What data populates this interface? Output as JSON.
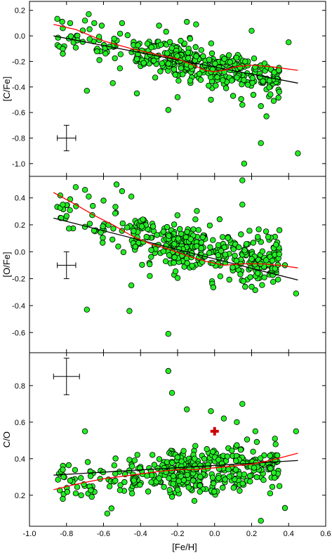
{
  "chart_data": {
    "type": "scatter",
    "xlabel": "[Fe/H]",
    "xlim": [
      -1.0,
      0.6
    ],
    "xticks": [
      -1.0,
      -0.8,
      -0.6,
      -0.4,
      -0.2,
      0.0,
      0.2,
      0.4,
      0.6
    ],
    "xtick_labels": [
      "-1.0",
      "-0.8",
      "-0.6",
      "-0.4",
      "-0.2",
      "0.0",
      "0.2",
      "0.4",
      "0.6"
    ],
    "colors": {
      "points": "#22ee22",
      "point_edge": "#000000",
      "linear_fit": "#000000",
      "smooth_fit": "#ff0000",
      "sun_marker": "#cc0000"
    },
    "panels": [
      {
        "id": "c-fe",
        "ylabel": "[C/Fe]",
        "ylim": [
          -1.1,
          0.27
        ],
        "yticks": [
          0.2,
          0.0,
          -0.2,
          -0.4,
          -0.6,
          -0.8,
          -1.0
        ],
        "ytick_labels": [
          "0.2",
          "0.0",
          "-0.2",
          "-0.4",
          "-0.6",
          "-0.8",
          "-1.0"
        ],
        "error_bar": {
          "x": -0.8,
          "y": -0.8,
          "xerr": 0.05,
          "yerr": 0.1
        },
        "linear_fit": [
          [
            -0.87,
            0.0
          ],
          [
            0.45,
            -0.37
          ]
        ],
        "smooth_fit": [
          [
            -0.87,
            0.09
          ],
          [
            -0.75,
            0.05
          ],
          [
            -0.6,
            -0.04
          ],
          [
            -0.45,
            -0.1
          ],
          [
            -0.3,
            -0.15
          ],
          [
            -0.2,
            -0.18
          ],
          [
            -0.1,
            -0.24
          ],
          [
            -0.05,
            -0.27
          ],
          [
            0.0,
            -0.28
          ],
          [
            0.05,
            -0.27
          ],
          [
            0.12,
            -0.24
          ],
          [
            0.2,
            -0.23
          ],
          [
            0.3,
            -0.24
          ],
          [
            0.45,
            -0.27
          ]
        ],
        "seed": 11,
        "center": [
          [
            -0.87,
            0.0
          ],
          [
            0.45,
            -0.37
          ]
        ],
        "spread": 0.07,
        "points": [
          [
            -0.82,
            0.06
          ],
          [
            -0.82,
            -0.14
          ],
          [
            -0.78,
            0.1
          ],
          [
            -0.7,
            0.12
          ],
          [
            -0.68,
            0.17
          ],
          [
            -0.65,
            0.1
          ],
          [
            -0.61,
            0.08
          ],
          [
            -0.69,
            -0.43
          ],
          [
            -0.55,
            -0.37
          ],
          [
            -0.42,
            -0.45
          ],
          [
            -0.2,
            -0.48
          ],
          [
            -0.02,
            -0.5
          ],
          [
            0.1,
            -0.47
          ],
          [
            0.15,
            -0.54
          ],
          [
            0.25,
            -0.55
          ],
          [
            0.28,
            -0.63
          ],
          [
            -0.25,
            -0.58
          ],
          [
            0.25,
            -0.84
          ],
          [
            0.16,
            -1.0
          ],
          [
            0.45,
            -0.92
          ],
          [
            -0.15,
            0.11
          ],
          [
            -0.1,
            0.09
          ],
          [
            0.2,
            0.04
          ],
          [
            0.4,
            -0.05
          ],
          [
            -0.3,
            0.08
          ],
          [
            -0.5,
            0.1
          ]
        ]
      },
      {
        "id": "o-fe",
        "ylabel": "[O/Fe]",
        "ylim": [
          -0.75,
          0.56
        ],
        "yticks": [
          0.4,
          0.2,
          0.0,
          -0.2,
          -0.4,
          -0.6
        ],
        "ytick_labels": [
          "0.4",
          "0.2",
          "0.0",
          "-0.2",
          "-0.4",
          "-0.6"
        ],
        "error_bar": {
          "x": -0.8,
          "y": -0.1,
          "xerr": 0.05,
          "yerr": 0.1
        },
        "linear_fit": [
          [
            -0.87,
            0.25
          ],
          [
            0.45,
            -0.21
          ]
        ],
        "smooth_fit": [
          [
            -0.87,
            0.44
          ],
          [
            -0.75,
            0.35
          ],
          [
            -0.65,
            0.27
          ],
          [
            -0.55,
            0.2
          ],
          [
            -0.45,
            0.12
          ],
          [
            -0.35,
            0.06
          ],
          [
            -0.25,
            0.02
          ],
          [
            -0.15,
            -0.03
          ],
          [
            -0.05,
            -0.07
          ],
          [
            0.05,
            -0.1
          ],
          [
            0.15,
            -0.09
          ],
          [
            0.25,
            -0.09
          ],
          [
            0.35,
            -0.1
          ],
          [
            0.45,
            -0.12
          ]
        ],
        "seed": 23,
        "center": [
          [
            -0.87,
            0.3
          ],
          [
            -0.45,
            0.12
          ],
          [
            0.45,
            -0.12
          ]
        ],
        "spread": 0.09,
        "points": [
          [
            -0.82,
            0.35
          ],
          [
            -0.78,
            0.39
          ],
          [
            -0.75,
            0.48
          ],
          [
            -0.7,
            0.46
          ],
          [
            -0.68,
            0.41
          ],
          [
            -0.6,
            0.38
          ],
          [
            -0.53,
            0.5
          ],
          [
            -0.5,
            0.45
          ],
          [
            -0.45,
            0.41
          ],
          [
            -0.69,
            -0.43
          ],
          [
            -0.46,
            -0.44
          ],
          [
            -0.25,
            -0.61
          ],
          [
            0.15,
            0.53
          ],
          [
            0.15,
            0.35
          ],
          [
            0.44,
            -0.31
          ],
          [
            0.35,
            0.16
          ],
          [
            0.2,
            -0.26
          ],
          [
            -0.45,
            -0.25
          ],
          [
            -0.35,
            -0.18
          ],
          [
            0.38,
            -0.1
          ]
        ]
      },
      {
        "id": "c-o",
        "ylabel": "C/O",
        "ylim": [
          0.03,
          0.98
        ],
        "yticks": [
          0.8,
          0.6,
          0.4,
          0.2
        ],
        "ytick_labels": [
          "0.8",
          "0.6",
          "0.4",
          "0.2"
        ],
        "error_bar": {
          "x": -0.8,
          "y": 0.85,
          "xerr": 0.07,
          "yerr": 0.1
        },
        "linear_fit": [
          [
            -0.87,
            0.31
          ],
          [
            0.45,
            0.39
          ]
        ],
        "smooth_fit": [
          [
            -0.87,
            0.23
          ],
          [
            -0.75,
            0.26
          ],
          [
            -0.6,
            0.29
          ],
          [
            -0.45,
            0.31
          ],
          [
            -0.3,
            0.33
          ],
          [
            -0.2,
            0.34
          ],
          [
            -0.1,
            0.34
          ],
          [
            0.0,
            0.35
          ],
          [
            0.1,
            0.36
          ],
          [
            0.2,
            0.37
          ],
          [
            0.3,
            0.39
          ],
          [
            0.45,
            0.43
          ]
        ],
        "seed": 37,
        "center": [
          [
            -0.87,
            0.28
          ],
          [
            0.45,
            0.38
          ]
        ],
        "spread": 0.06,
        "sun": [
          0.0,
          0.55
        ],
        "points": [
          [
            -0.82,
            0.34
          ],
          [
            -0.82,
            0.18
          ],
          [
            -0.7,
            0.55
          ],
          [
            -0.58,
            0.1
          ],
          [
            -0.25,
            0.88
          ],
          [
            -0.23,
            0.76
          ],
          [
            -0.15,
            0.67
          ],
          [
            -0.02,
            0.66
          ],
          [
            0.05,
            0.62
          ],
          [
            0.15,
            0.7
          ],
          [
            0.12,
            0.6
          ],
          [
            0.22,
            0.55
          ],
          [
            0.25,
            0.06
          ],
          [
            0.38,
            0.13
          ],
          [
            0.44,
            0.55
          ],
          [
            -0.78,
            0.28
          ],
          [
            -0.75,
            0.21
          ],
          [
            0.3,
            0.21
          ],
          [
            0.35,
            0.25
          ]
        ]
      }
    ]
  }
}
